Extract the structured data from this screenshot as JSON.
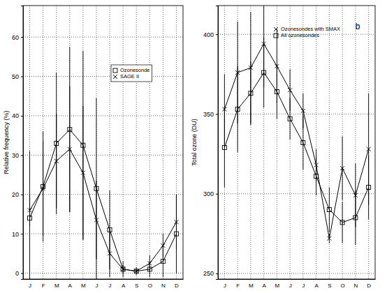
{
  "chart_data": [
    {
      "type": "line",
      "y_label": "Relative frequency (%)",
      "categories": [
        "J",
        "F",
        "M",
        "A",
        "M",
        "J",
        "J",
        "A",
        "S",
        "O",
        "N",
        "D"
      ],
      "ylim": [
        -1.5,
        68
      ],
      "yticks": [
        0,
        10,
        20,
        30,
        40,
        50,
        60
      ],
      "grid": true,
      "legend": "upper right",
      "series": [
        {
          "name": "Ozonesonde",
          "color": "#000000",
          "marker": "square",
          "line_style": "solid",
          "values": [
            14,
            22,
            33,
            36.5,
            32.5,
            21.5,
            11,
            1,
            0.5,
            1,
            3,
            10
          ],
          "errors": [
            17,
            14,
            18,
            21,
            24,
            23,
            10,
            2,
            1,
            2,
            4,
            10
          ]
        },
        {
          "name": "SAGE II",
          "color": "#000000",
          "marker": "x",
          "line_style": "solid",
          "values": [
            16,
            21.5,
            28.5,
            31.5,
            25.5,
            13.5,
            5,
            1,
            0.5,
            2.5,
            7,
            13
          ],
          "errors": [
            4,
            12,
            12,
            16,
            17,
            10,
            6,
            1,
            0.5,
            2,
            3,
            7
          ]
        }
      ]
    },
    {
      "type": "line",
      "y_label": "Total ozone (DU)",
      "annotations": [
        "b"
      ],
      "categories": [
        "J",
        "F",
        "M",
        "A",
        "M",
        "J",
        "J",
        "A",
        "S",
        "O",
        "N",
        "D"
      ],
      "ylim": [
        246.5,
        418
      ],
      "yticks": [
        250,
        300,
        350,
        400
      ],
      "grid": true,
      "legend": "upper left",
      "series": [
        {
          "name": "Ozonesondes with SMAX",
          "color": "#000000",
          "marker": "x",
          "line_style": "solid",
          "values": [
            353,
            376,
            379,
            394,
            380,
            365,
            352,
            318,
            272,
            316,
            299,
            328
          ],
          "errors": [
            22,
            32,
            35,
            27,
            23,
            13,
            11,
            10,
            3,
            20,
            20,
            35
          ]
        },
        {
          "name": "All ozonesondes",
          "color": "#000000",
          "marker": "square",
          "line_style": "solid",
          "values": [
            329,
            353,
            363,
            376,
            364,
            347,
            332,
            311,
            290,
            282,
            285,
            304
          ],
          "errors": [
            25,
            27,
            20,
            22,
            17,
            13,
            17,
            12,
            14,
            13,
            17,
            20
          ]
        }
      ]
    }
  ]
}
